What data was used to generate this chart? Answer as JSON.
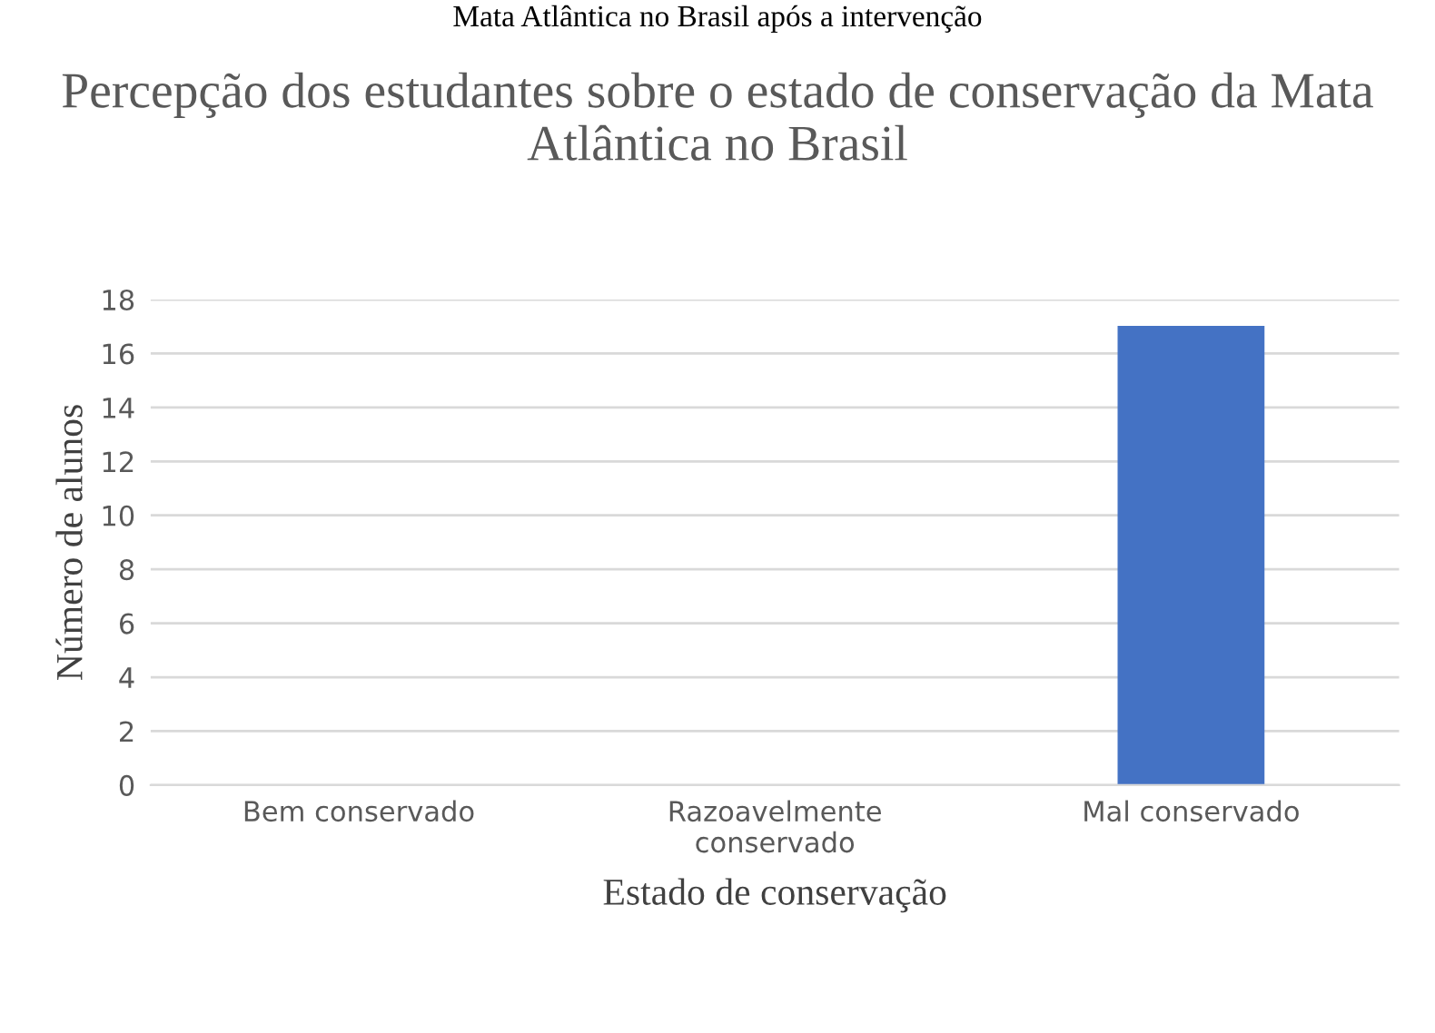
{
  "chart_data": {
    "type": "bar",
    "title": "Percepção dos estudantes sobre o estado de conservação da Mata Atlântica no Brasil",
    "annotations": [
      "Mata Atlântica no Brasil após a intervenção"
    ],
    "xlabel": "Estado de conservação",
    "ylabel": "Número de alunos",
    "categories": [
      "Bem conservado",
      "Razoavelmente\nconservado",
      "Mal conservado"
    ],
    "values": [
      0,
      0,
      17
    ],
    "color": "#4472c4",
    "ylim": [
      0,
      18
    ],
    "yticks": [
      0,
      2,
      4,
      6,
      8,
      10,
      12,
      14,
      16,
      18
    ],
    "grid": "y"
  }
}
